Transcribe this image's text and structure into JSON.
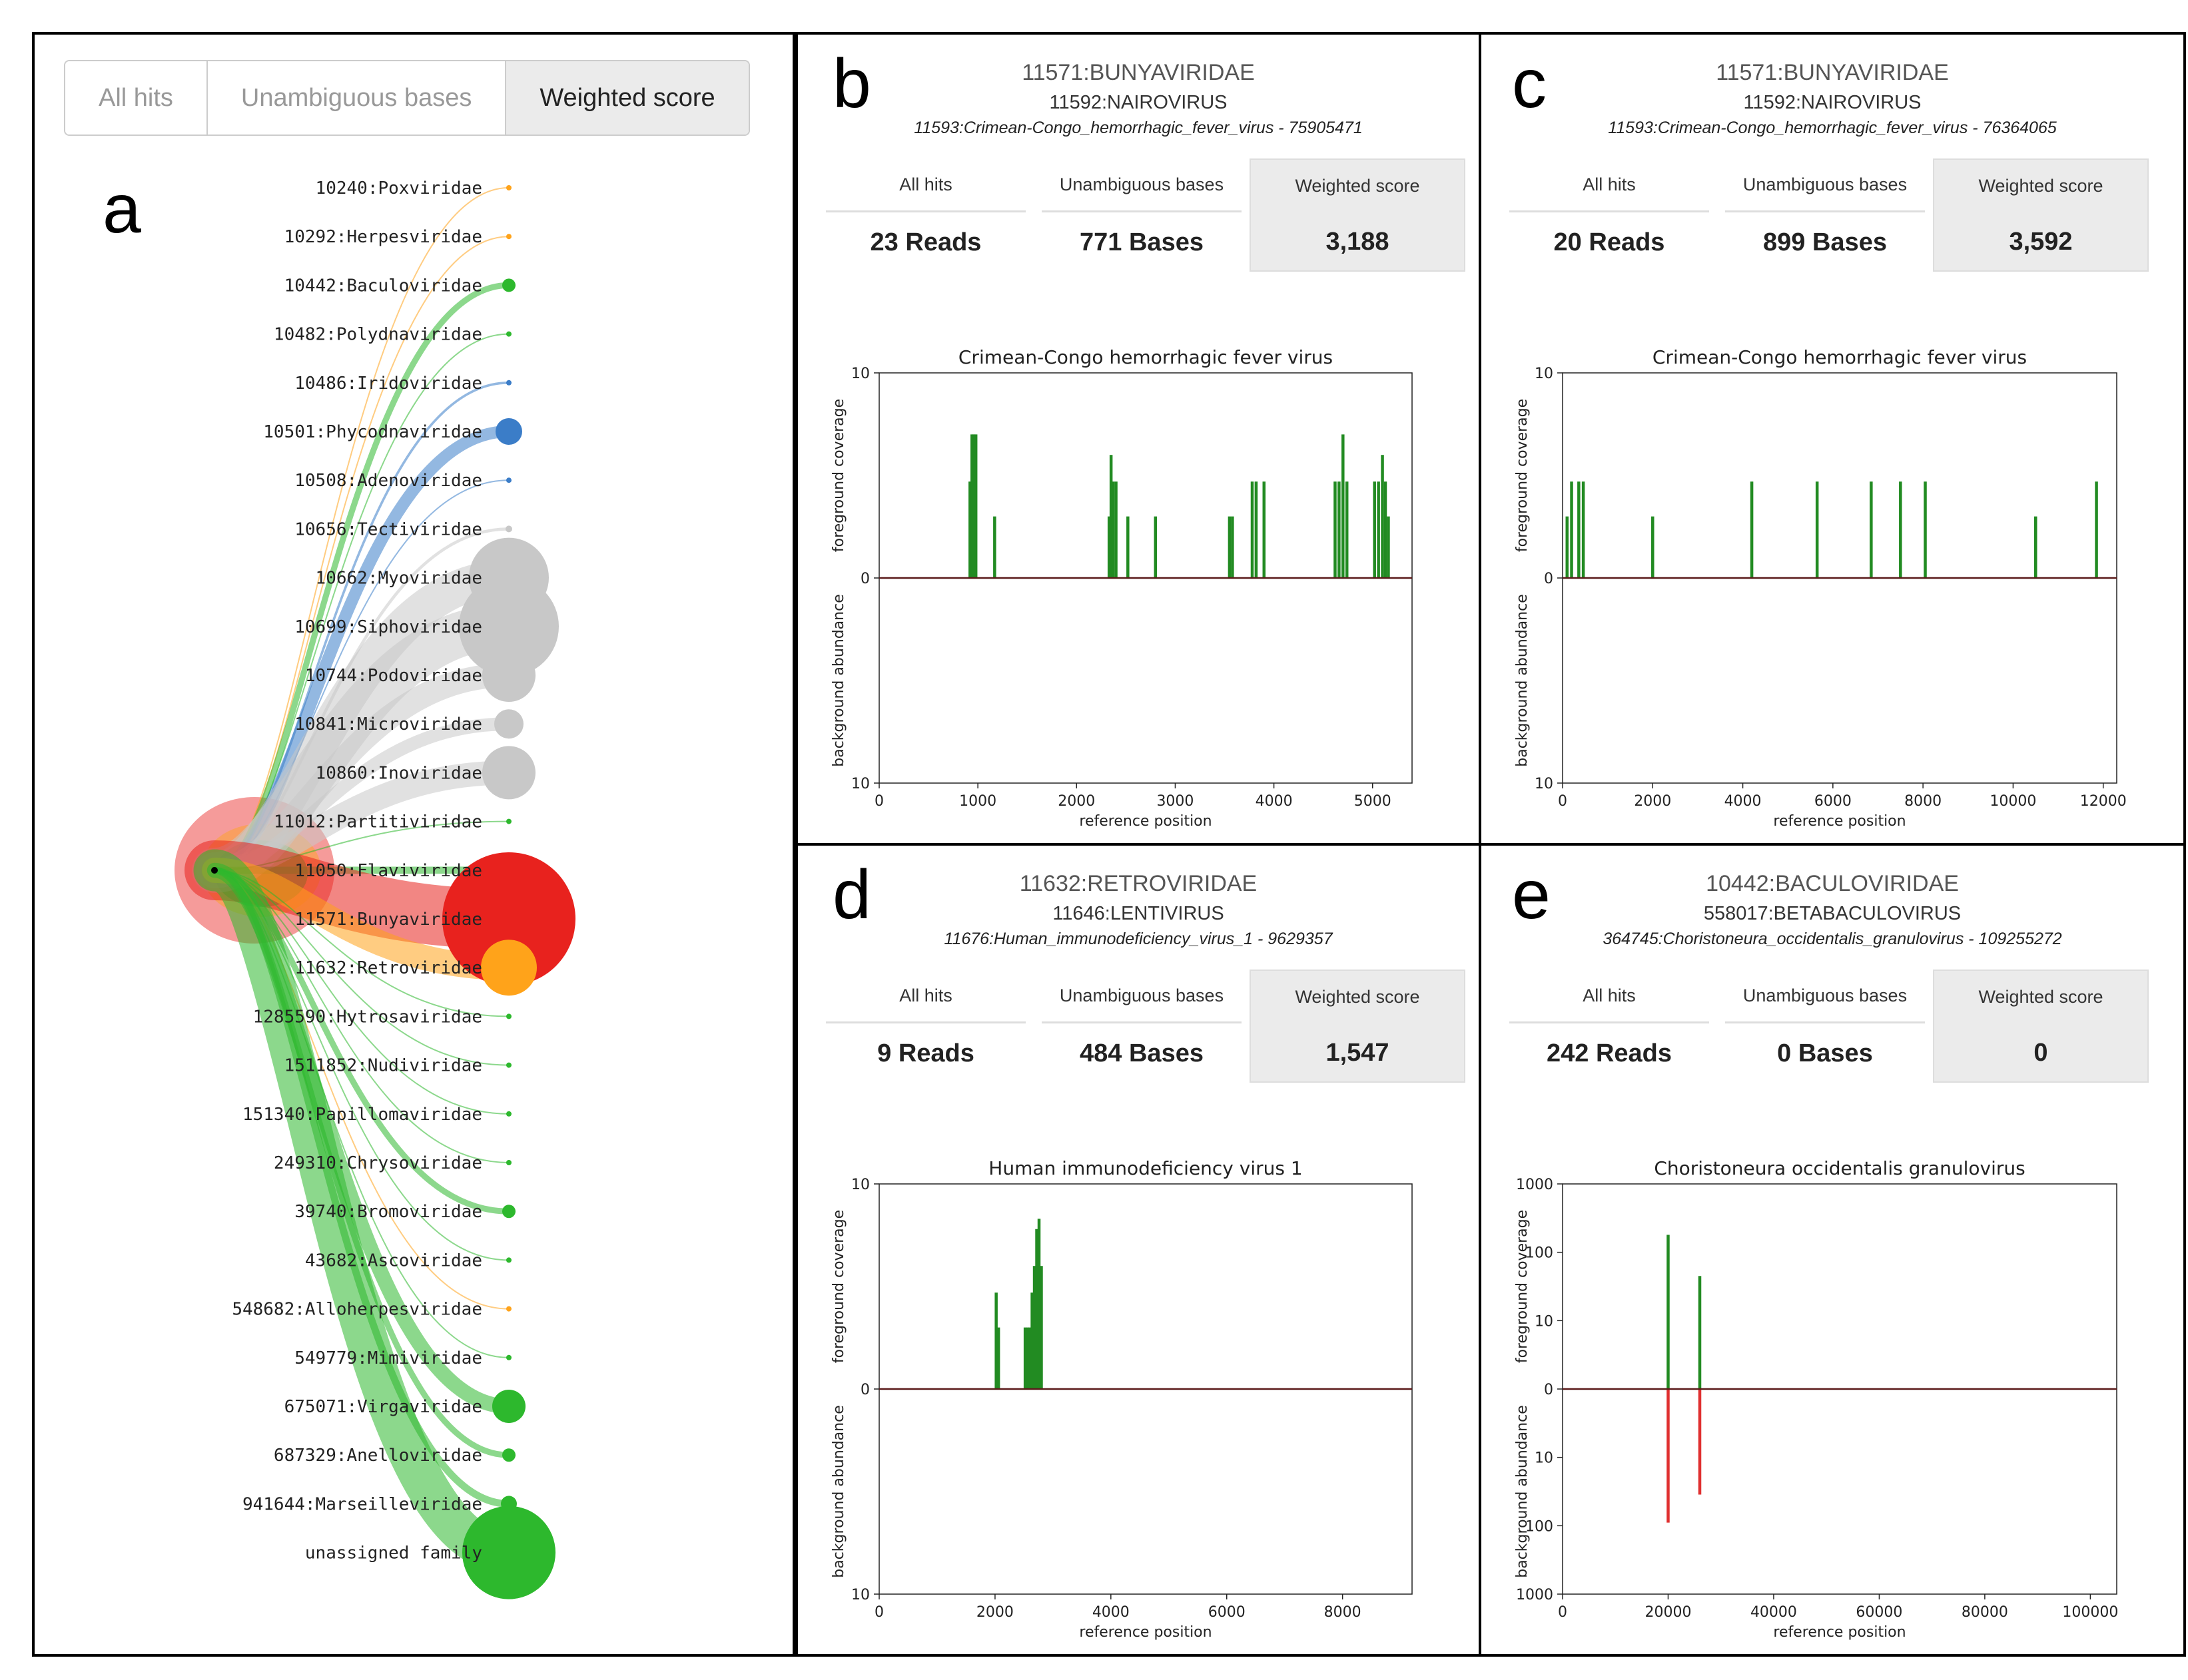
{
  "tabs": [
    "All hits",
    "Unambiguous bases",
    "Weighted score"
  ],
  "active_tab": "Weighted score",
  "panel_letters": {
    "a": "a",
    "b": "b",
    "c": "c",
    "d": "d",
    "e": "e"
  },
  "colors": {
    "green": "#2db82d",
    "red": "#e8221e",
    "orange": "#ffa31a",
    "blue": "#3b7dc8",
    "gray": "#c8c8c8",
    "bar_fg": "#228b22",
    "bar_bg": "#e03030",
    "baseline": "#5a1a1a"
  },
  "chart_data": [
    {
      "type": "tree",
      "panel": "a",
      "nodes": [
        {
          "label": "10240:Poxviridae",
          "size": 2,
          "color": "orange"
        },
        {
          "label": "10292:Herpesviridae",
          "size": 2,
          "color": "orange"
        },
        {
          "label": "10442:Baculoviridae",
          "size": 10,
          "color": "green"
        },
        {
          "label": "10482:Polydnaviridae",
          "size": 2,
          "color": "green"
        },
        {
          "label": "10486:Iridoviridae",
          "size": 4,
          "color": "blue"
        },
        {
          "label": "10501:Phycodnaviridae",
          "size": 20,
          "color": "blue"
        },
        {
          "label": "10508:Adenoviridae",
          "size": 2,
          "color": "blue"
        },
        {
          "label": "10656:Tectiviridae",
          "size": 5,
          "color": "gray"
        },
        {
          "label": "10662:Myoviridae",
          "size": 60,
          "color": "gray"
        },
        {
          "label": "10699:Siphoviridae",
          "size": 75,
          "color": "gray"
        },
        {
          "label": "10744:Podoviridae",
          "size": 40,
          "color": "gray"
        },
        {
          "label": "10841:Microviridae",
          "size": 22,
          "color": "gray"
        },
        {
          "label": "10860:Inoviridae",
          "size": 40,
          "color": "gray"
        },
        {
          "label": "11012:Partitiviridae",
          "size": 2,
          "color": "green"
        },
        {
          "label": "11050:Flaviviridae",
          "size": 12,
          "color": "green"
        },
        {
          "label": "11571:Bunyaviridae",
          "size": 100,
          "color": "red"
        },
        {
          "label": "11632:Retroviridae",
          "size": 42,
          "color": "orange"
        },
        {
          "label": "1285590:Hytrosaviridae",
          "size": 2,
          "color": "green"
        },
        {
          "label": "1511852:Nudiviridae",
          "size": 2,
          "color": "green"
        },
        {
          "label": "151340:Papillomaviridae",
          "size": 2,
          "color": "green"
        },
        {
          "label": "249310:Chrysoviridae",
          "size": 2,
          "color": "green"
        },
        {
          "label": "39740:Bromoviridae",
          "size": 10,
          "color": "green"
        },
        {
          "label": "43682:Ascoviridae",
          "size": 2,
          "color": "green"
        },
        {
          "label": "548682:Alloherpesviridae",
          "size": 2,
          "color": "orange"
        },
        {
          "label": "549779:Mimiviridae",
          "size": 2,
          "color": "green"
        },
        {
          "label": "675071:Virgaviridae",
          "size": 25,
          "color": "green"
        },
        {
          "label": "687329:Anelloviridae",
          "size": 10,
          "color": "green"
        },
        {
          "label": "941644:Marseilleviridae",
          "size": 12,
          "color": "green"
        },
        {
          "label": "unassigned family",
          "size": 70,
          "color": "green"
        }
      ]
    },
    {
      "type": "bar",
      "panel": "b",
      "family": "11571:BUNYAVIRIDAE",
      "genus": "11592:NAIROVIRUS",
      "species": "11593:Crimean-Congo_hemorrhagic_fever_virus - 75905471",
      "stats": [
        {
          "label": "All hits",
          "value": "23 Reads"
        },
        {
          "label": "Unambiguous bases",
          "value": "771 Bases"
        },
        {
          "label": "Weighted score",
          "value": "3,188"
        }
      ],
      "title": "Crimean-Congo hemorrhagic fever virus",
      "xlabel": "reference position",
      "ylabel_top": "foreground coverage",
      "ylabel_bottom": "background abundance",
      "xlim": [
        0,
        5400
      ],
      "xticks": [
        "0",
        "1000",
        "2000",
        "3000",
        "4000",
        "5000"
      ],
      "yticks_top": [
        "10",
        "0"
      ],
      "yticks_bottom": [
        "10"
      ],
      "ymax": 10,
      "log": false,
      "foreground": [
        [
          920,
          4.7
        ],
        [
          940,
          7
        ],
        [
          960,
          7
        ],
        [
          980,
          7
        ],
        [
          1170,
          3
        ],
        [
          2330,
          3
        ],
        [
          2350,
          6
        ],
        [
          2370,
          4.7
        ],
        [
          2400,
          4.7
        ],
        [
          2520,
          3
        ],
        [
          2800,
          3
        ],
        [
          3550,
          3
        ],
        [
          3580,
          3
        ],
        [
          3780,
          4.7
        ],
        [
          3820,
          4.7
        ],
        [
          3900,
          4.7
        ],
        [
          4620,
          4.7
        ],
        [
          4660,
          4.7
        ],
        [
          4700,
          7
        ],
        [
          4740,
          4.7
        ],
        [
          5020,
          4.7
        ],
        [
          5060,
          4.7
        ],
        [
          5100,
          6
        ],
        [
          5130,
          4.7
        ],
        [
          5160,
          3
        ]
      ],
      "background": []
    },
    {
      "type": "bar",
      "panel": "c",
      "family": "11571:BUNYAVIRIDAE",
      "genus": "11592:NAIROVIRUS",
      "species": "11593:Crimean-Congo_hemorrhagic_fever_virus - 76364065",
      "stats": [
        {
          "label": "All hits",
          "value": "20 Reads"
        },
        {
          "label": "Unambiguous bases",
          "value": "899 Bases"
        },
        {
          "label": "Weighted score",
          "value": "3,592"
        }
      ],
      "title": "Crimean-Congo hemorrhagic fever virus",
      "xlabel": "reference position",
      "ylabel_top": "foreground coverage",
      "ylabel_bottom": "background abundance",
      "xlim": [
        0,
        12300
      ],
      "xticks": [
        "0",
        "2000",
        "4000",
        "6000",
        "8000",
        "10000",
        "12000"
      ],
      "yticks_top": [
        "10",
        "0"
      ],
      "yticks_bottom": [
        "10"
      ],
      "ymax": 10,
      "log": false,
      "foreground": [
        [
          100,
          3
        ],
        [
          200,
          4.7
        ],
        [
          360,
          4.7
        ],
        [
          460,
          4.7
        ],
        [
          2000,
          3
        ],
        [
          4200,
          4.7
        ],
        [
          5650,
          4.7
        ],
        [
          6850,
          4.7
        ],
        [
          7500,
          4.7
        ],
        [
          8050,
          4.7
        ],
        [
          10500,
          3
        ],
        [
          11850,
          4.7
        ]
      ],
      "background": []
    },
    {
      "type": "bar",
      "panel": "d",
      "family": "11632:RETROVIRIDAE",
      "genus": "11646:LENTIVIRUS",
      "species": "11676:Human_immunodeficiency_virus_1 - 9629357",
      "stats": [
        {
          "label": "All hits",
          "value": "9 Reads"
        },
        {
          "label": "Unambiguous bases",
          "value": "484 Bases"
        },
        {
          "label": "Weighted score",
          "value": "1,547"
        }
      ],
      "title": "Human immunodeficiency virus 1",
      "xlabel": "reference position",
      "ylabel_top": "foreground coverage",
      "ylabel_bottom": "background abundance",
      "xlim": [
        0,
        9200
      ],
      "xticks": [
        "0",
        "2000",
        "4000",
        "6000",
        "8000"
      ],
      "yticks_top": [
        "10",
        "0"
      ],
      "yticks_bottom": [
        "10"
      ],
      "ymax": 10,
      "log": false,
      "foreground": [
        [
          2020,
          4.7
        ],
        [
          2060,
          3
        ],
        [
          2520,
          3
        ],
        [
          2560,
          3
        ],
        [
          2600,
          3
        ],
        [
          2640,
          4.7
        ],
        [
          2680,
          6
        ],
        [
          2720,
          7.8
        ],
        [
          2760,
          8.3
        ],
        [
          2800,
          6
        ]
      ],
      "background": []
    },
    {
      "type": "bar",
      "panel": "e",
      "family": "10442:BACULOVIRIDAE",
      "genus": "558017:BETABACULOVIRUS",
      "species": "364745:Choristoneura_occidentalis_granulovirus - 109255272",
      "stats": [
        {
          "label": "All hits",
          "value": "242 Reads"
        },
        {
          "label": "Unambiguous bases",
          "value": "0 Bases"
        },
        {
          "label": "Weighted score",
          "value": "0"
        }
      ],
      "title": "Choristoneura occidentalis granulovirus",
      "xlabel": "reference position",
      "ylabel_top": "foreground coverage",
      "ylabel_bottom": "background abundance",
      "xlim": [
        0,
        105000
      ],
      "xticks": [
        "0",
        "20000",
        "40000",
        "60000",
        "80000",
        "100000"
      ],
      "yticks_top": [
        "1000",
        "100",
        "10",
        "0"
      ],
      "yticks_bottom": [
        "10",
        "100",
        "1000"
      ],
      "ymax": 1000,
      "log": true,
      "foreground": [
        [
          20000,
          180
        ],
        [
          26000,
          45
        ]
      ],
      "background": [
        [
          20000,
          90
        ],
        [
          26000,
          35
        ]
      ]
    }
  ]
}
